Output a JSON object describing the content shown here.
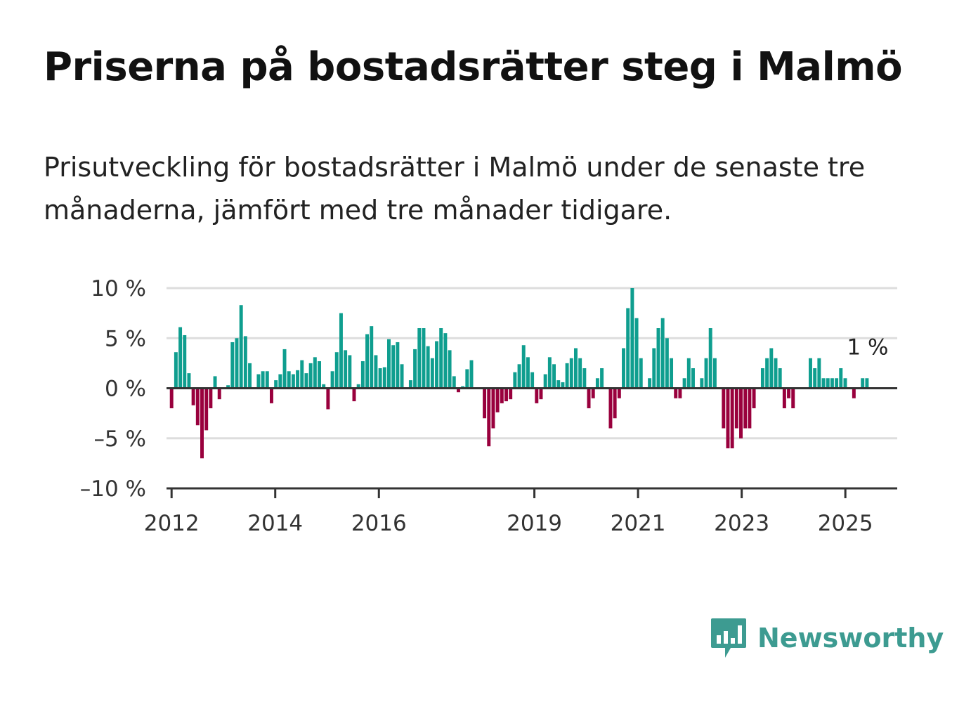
{
  "title": "Priserna på bostadsrätter steg i Malmö",
  "subtitle": "Prisutveckling för bostadsrätter i Malmö under de senaste tre månaderna, jämfört med tre månader tidigare.",
  "brand": {
    "name": "Newsworthy",
    "icon": "newsworthy-logo-icon",
    "color": "#3d9b91"
  },
  "colors": {
    "positive": "#0f9e8f",
    "negative": "#99003d",
    "grid": "#dddddd",
    "axis": "#333333"
  },
  "chart_data": {
    "type": "bar",
    "x_start": "2012-01",
    "x_end": "2025-06",
    "x_ticks": [
      "2012",
      "2014",
      "2016",
      "2019",
      "2021",
      "2023",
      "2025"
    ],
    "y_ticks": [
      "10 %",
      "5 %",
      "0 %",
      "–5 %",
      "–10 %"
    ],
    "ylim": [
      -10,
      10
    ],
    "unit": "%",
    "grid": true,
    "annotation": "1 %",
    "values": [
      -2,
      3.6,
      6.1,
      5.3,
      1.5,
      -1.7,
      -3.7,
      -7,
      -4.2,
      -2,
      1.2,
      -1.1,
      -0.1,
      0.3,
      4.6,
      5,
      8.3,
      5.2,
      2.5,
      0,
      1.4,
      1.7,
      1.7,
      -1.5,
      0.8,
      1.4,
      3.9,
      1.7,
      1.4,
      1.8,
      2.8,
      1.5,
      2.5,
      3.1,
      2.7,
      0.4,
      -2.1,
      1.7,
      3.6,
      7.5,
      3.8,
      3.3,
      -1.3,
      0.4,
      2.7,
      5.4,
      6.2,
      3.3,
      2,
      2.1,
      4.9,
      4.3,
      4.6,
      2.4,
      0.1,
      0.8,
      3.9,
      6,
      6,
      4.2,
      3,
      4.7,
      6,
      5.5,
      3.8,
      1.2,
      -0.4,
      0.2,
      1.9,
      2.8,
      0,
      0,
      -3,
      -5.8,
      -4,
      -2.4,
      -1.5,
      -1.3,
      -1.1,
      1.6,
      2.4,
      4.3,
      3.1,
      1.6,
      -1.5,
      -1.1,
      1.4,
      3.1,
      2.4,
      0.8,
      0.6,
      2.5,
      3,
      4,
      3,
      2,
      -2,
      -1,
      1,
      2,
      0,
      -4,
      -3,
      -1,
      4,
      8,
      10,
      7,
      3,
      0,
      1,
      4,
      6,
      7,
      5,
      3,
      -1,
      -1,
      1,
      3,
      2,
      0,
      1,
      3,
      6,
      3,
      0,
      -4,
      -6,
      -6,
      -4,
      -5,
      -4,
      -4,
      -2,
      0,
      2,
      3,
      4,
      3,
      2,
      -2,
      -1,
      -2,
      0,
      0,
      0,
      3,
      2,
      3,
      1,
      1,
      1,
      1,
      2,
      1,
      0,
      -1,
      0,
      1,
      1
    ]
  }
}
